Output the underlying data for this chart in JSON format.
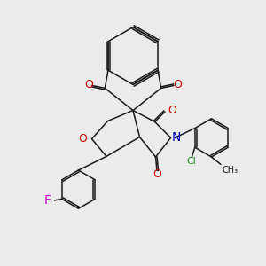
{
  "background_color": "#ebebeb",
  "bond_color": "#1a1a1a",
  "figsize": [
    3.0,
    3.0
  ],
  "dpi": 100,
  "atoms": {
    "F": {
      "color": "#cc00cc",
      "fontsize": 9
    },
    "O": {
      "color": "#cc0000",
      "fontsize": 9
    },
    "N": {
      "color": "#0000cc",
      "fontsize": 9
    },
    "Cl": {
      "color": "#228822",
      "fontsize": 8
    }
  },
  "lw": 1.1
}
